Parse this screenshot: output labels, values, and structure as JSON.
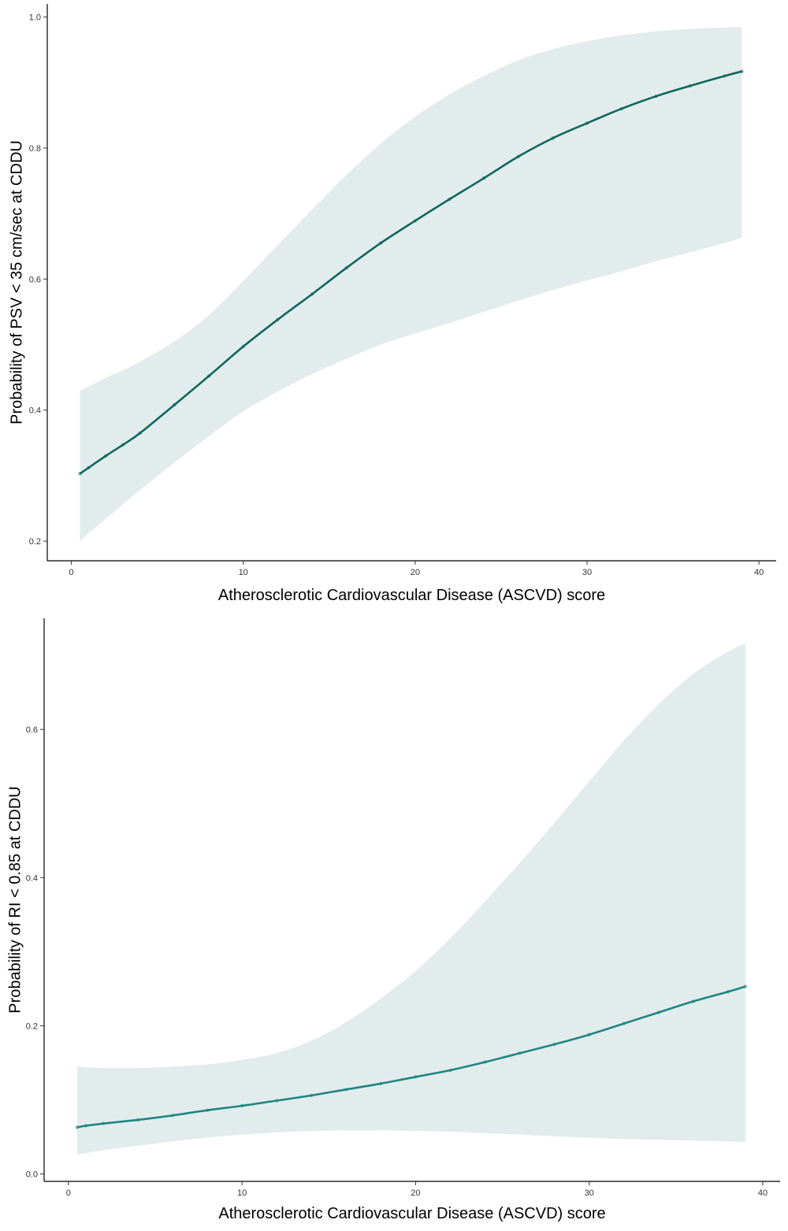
{
  "chart_data": [
    {
      "type": "line",
      "title": "",
      "xlabel": "Atherosclerotic Cardiovascular Disease (ASCVD) score",
      "ylabel": "Probability of PSV < 35 cm/sec at CDDU",
      "xlim": [
        -1.4,
        41
      ],
      "ylim": [
        0.17,
        1.02
      ],
      "x_ticks": [
        0,
        10,
        20,
        30,
        40
      ],
      "y_ticks": [
        0.2,
        0.4,
        0.6,
        0.8,
        1.0
      ],
      "x_tick_labels": [
        "0",
        "10",
        "20",
        "30",
        "40"
      ],
      "y_tick_labels": [
        "0.2",
        "0.4",
        "0.6",
        "0.8",
        "1.0"
      ],
      "grid": false,
      "colors": {
        "line": "#0e6660",
        "band": "#e2ecec"
      },
      "series": [
        {
          "x": [
            0.5,
            1,
            2,
            3,
            4,
            6,
            8,
            10,
            12,
            14,
            16,
            18,
            20,
            22,
            24,
            26,
            28,
            30,
            32,
            34,
            36,
            38,
            39
          ],
          "y": [
            0.303,
            0.312,
            0.33,
            0.347,
            0.365,
            0.408,
            0.452,
            0.497,
            0.538,
            0.577,
            0.617,
            0.655,
            0.689,
            0.722,
            0.754,
            0.787,
            0.815,
            0.838,
            0.86,
            0.879,
            0.895,
            0.91,
            0.917
          ],
          "lower": [
            0.2,
            0.212,
            0.234,
            0.256,
            0.278,
            0.32,
            0.36,
            0.398,
            0.428,
            0.455,
            0.478,
            0.5,
            0.517,
            0.533,
            0.55,
            0.567,
            0.583,
            0.598,
            0.612,
            0.627,
            0.641,
            0.655,
            0.663
          ],
          "upper": [
            0.43,
            0.436,
            0.449,
            0.461,
            0.474,
            0.505,
            0.545,
            0.597,
            0.652,
            0.706,
            0.759,
            0.807,
            0.848,
            0.882,
            0.91,
            0.934,
            0.951,
            0.963,
            0.972,
            0.978,
            0.982,
            0.984,
            0.985
          ]
        }
      ]
    },
    {
      "type": "line",
      "title": "",
      "xlabel": "Atherosclerotic Cardiovascular Disease (ASCVD) score",
      "ylabel": "Probability of RI < 0.85 at CDDU",
      "xlim": [
        -1.4,
        41
      ],
      "ylim": [
        -0.01,
        0.75
      ],
      "x_ticks": [
        0,
        10,
        20,
        30,
        40
      ],
      "y_ticks": [
        0.0,
        0.2,
        0.4,
        0.6
      ],
      "x_tick_labels": [
        "0",
        "10",
        "20",
        "30",
        "40"
      ],
      "y_tick_labels": [
        "0.0",
        "0.2",
        "0.4",
        "0.6"
      ],
      "grid": false,
      "colors": {
        "line": "#1e8585",
        "band": "#e2ecec"
      },
      "series": [
        {
          "x": [
            0.5,
            1,
            2,
            4,
            6,
            8,
            10,
            12,
            14,
            16,
            18,
            20,
            22,
            24,
            26,
            28,
            30,
            32,
            34,
            36,
            38,
            39
          ],
          "y": [
            0.063,
            0.065,
            0.068,
            0.073,
            0.079,
            0.086,
            0.092,
            0.099,
            0.106,
            0.114,
            0.122,
            0.131,
            0.14,
            0.151,
            0.163,
            0.175,
            0.188,
            0.203,
            0.218,
            0.233,
            0.246,
            0.253
          ],
          "lower": [
            0.026,
            0.028,
            0.032,
            0.038,
            0.044,
            0.049,
            0.053,
            0.056,
            0.058,
            0.059,
            0.059,
            0.058,
            0.057,
            0.055,
            0.053,
            0.051,
            0.049,
            0.047,
            0.046,
            0.045,
            0.044,
            0.043
          ],
          "upper": [
            0.145,
            0.144,
            0.143,
            0.143,
            0.145,
            0.148,
            0.154,
            0.163,
            0.18,
            0.205,
            0.237,
            0.274,
            0.318,
            0.368,
            0.42,
            0.474,
            0.53,
            0.585,
            0.634,
            0.675,
            0.705,
            0.716
          ]
        }
      ]
    }
  ]
}
